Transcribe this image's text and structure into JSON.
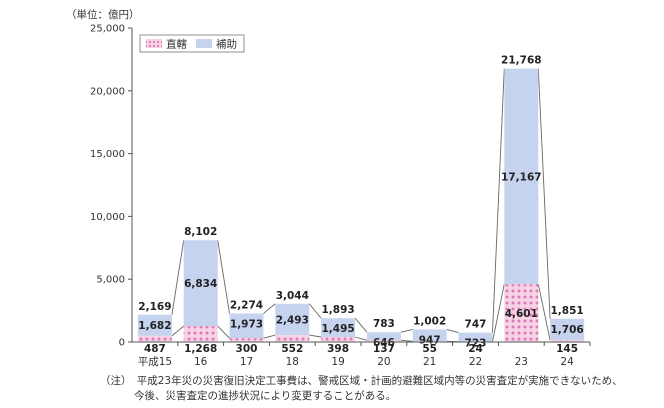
{
  "chart_data": {
    "type": "bar",
    "stacked": true,
    "unit_label": "（単位：億円）",
    "categories": [
      "平成15",
      "16",
      "17",
      "18",
      "19",
      "20",
      "21",
      "22",
      "23",
      "24"
    ],
    "series": [
      {
        "name": "直轄",
        "values": [
          487,
          1268,
          300,
          552,
          398,
          137,
          55,
          24,
          4601,
          145
        ],
        "color": "#e8a0c8",
        "pattern": "dots"
      },
      {
        "name": "補助",
        "values": [
          1682,
          6834,
          1973,
          2493,
          1495,
          646,
          947,
          723,
          17167,
          1706
        ],
        "color": "#c6d3ee"
      }
    ],
    "totals": [
      2169,
      8102,
      2274,
      3044,
      1893,
      783,
      1002,
      747,
      21768,
      1851
    ],
    "direct_labels": [
      "487",
      "1,268",
      "300",
      "552",
      "398",
      "137",
      "55",
      "24",
      "4,601",
      "145"
    ],
    "subsidy_labels": [
      "1,682",
      "6,834",
      "1,973",
      "2,493",
      "1,495",
      "646",
      "947",
      "723",
      "17,167",
      "1,706"
    ],
    "total_labels": [
      "2,169",
      "8,102",
      "2,274",
      "3,044",
      "1,893",
      "783",
      "1,002",
      "747",
      "21,768",
      "1,851"
    ],
    "ylim": [
      0,
      25000
    ],
    "yticks": [
      0,
      5000,
      10000,
      15000,
      20000,
      25000
    ],
    "ytick_labels": [
      "0",
      "5,000",
      "10,000",
      "15,000",
      "20,000",
      "25,000"
    ],
    "legend": [
      "直轄",
      "補助"
    ],
    "legend_position": "top-left",
    "connector_lines": true,
    "grid": false
  },
  "note": {
    "line1": "（注）　平成23年災の災害復旧決定工事費は、警戒区域・計画的避難区域内等の災害査定が実施できないため、",
    "line2": "今後、災害査定の進捗状況により変更することがある。"
  },
  "colors": {
    "direct": "#e8a0c8",
    "subsidy": "#c6d3ee",
    "axis": "#555555",
    "connector": "#666666"
  }
}
